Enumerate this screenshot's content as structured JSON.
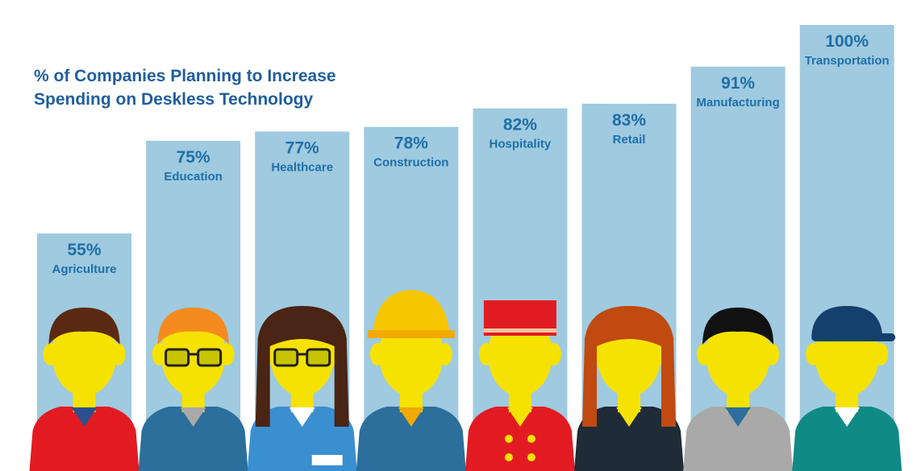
{
  "chart_data": {
    "type": "bar",
    "title_lines": [
      "% of Companies Planning to Increase",
      "Spending on Deskless Technology"
    ],
    "categories": [
      "Agriculture",
      "Education",
      "Healthcare",
      "Construction",
      "Hospitality",
      "Retail",
      "Manufacturing",
      "Transportation"
    ],
    "values": [
      55,
      75,
      77,
      78,
      82,
      83,
      91,
      100
    ],
    "value_labels": [
      "55%",
      "75%",
      "77%",
      "78%",
      "82%",
      "83%",
      "91%",
      "100%"
    ],
    "ylim": [
      0,
      100
    ],
    "grid": false,
    "legend": "none"
  },
  "colors": {
    "bar": "#9fcae0",
    "label": "#1f6fa8",
    "title": "#1f5e9e",
    "skin": "#f6e200"
  },
  "figures": [
    {
      "icon": "farmer-figure-icon",
      "hair": "#5c2a12",
      "shirt": "#e21b22",
      "accent": "#2b4f8e"
    },
    {
      "icon": "teacher-figure-icon",
      "hair": "#f58b1f",
      "shirt": "#2c6f9c",
      "accent": "#a9a9a9"
    },
    {
      "icon": "nurse-figure-icon",
      "hair": "#4a2414",
      "shirt": "#3a8fd0",
      "accent": "#ffffff"
    },
    {
      "icon": "construction-worker-figure-icon",
      "hair": "#f6c600",
      "shirt": "#2c6f9c",
      "accent": "#f2a900"
    },
    {
      "icon": "bellhop-figure-icon",
      "hair": "#e21b22",
      "shirt": "#e21b22",
      "accent": "#f6e200"
    },
    {
      "icon": "retail-worker-figure-icon",
      "hair": "#c04a10",
      "shirt": "#1f2b37",
      "accent": "#f6e200"
    },
    {
      "icon": "factory-worker-figure-icon",
      "hair": "#111111",
      "shirt": "#a9a9a9",
      "accent": "#2c6f9c"
    },
    {
      "icon": "driver-figure-icon",
      "hair": "#13416b",
      "shirt": "#0f8a85",
      "accent": "#ffffff"
    }
  ]
}
